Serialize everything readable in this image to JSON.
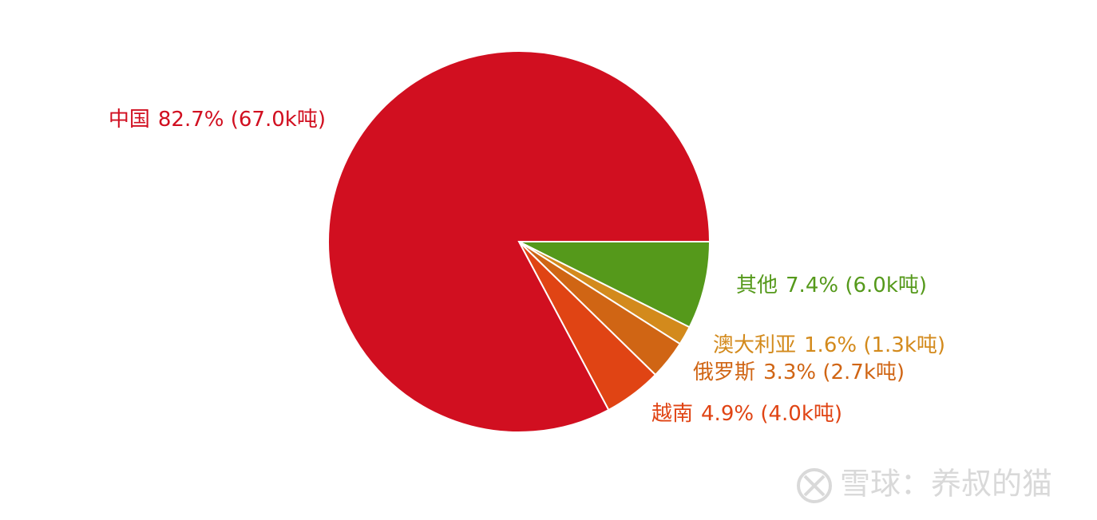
{
  "chart_data": {
    "type": "pie",
    "categories": [
      "其他",
      "澳大利亚",
      "俄罗斯",
      "越南",
      "中国"
    ],
    "values": [
      7.4,
      1.6,
      3.3,
      4.9,
      82.7
    ],
    "value_labels": [
      "7.4% (6.0k吨)",
      "1.6% (1.3k吨)",
      "3.3% (2.7k吨)",
      "4.9% (4.0k吨)",
      "82.7% (67.0k吨)"
    ],
    "colors": [
      "#55991b",
      "#d38a1c",
      "#d06514",
      "#e04414",
      "#d10f20"
    ],
    "watermark": "雪球：养叔的猫"
  }
}
